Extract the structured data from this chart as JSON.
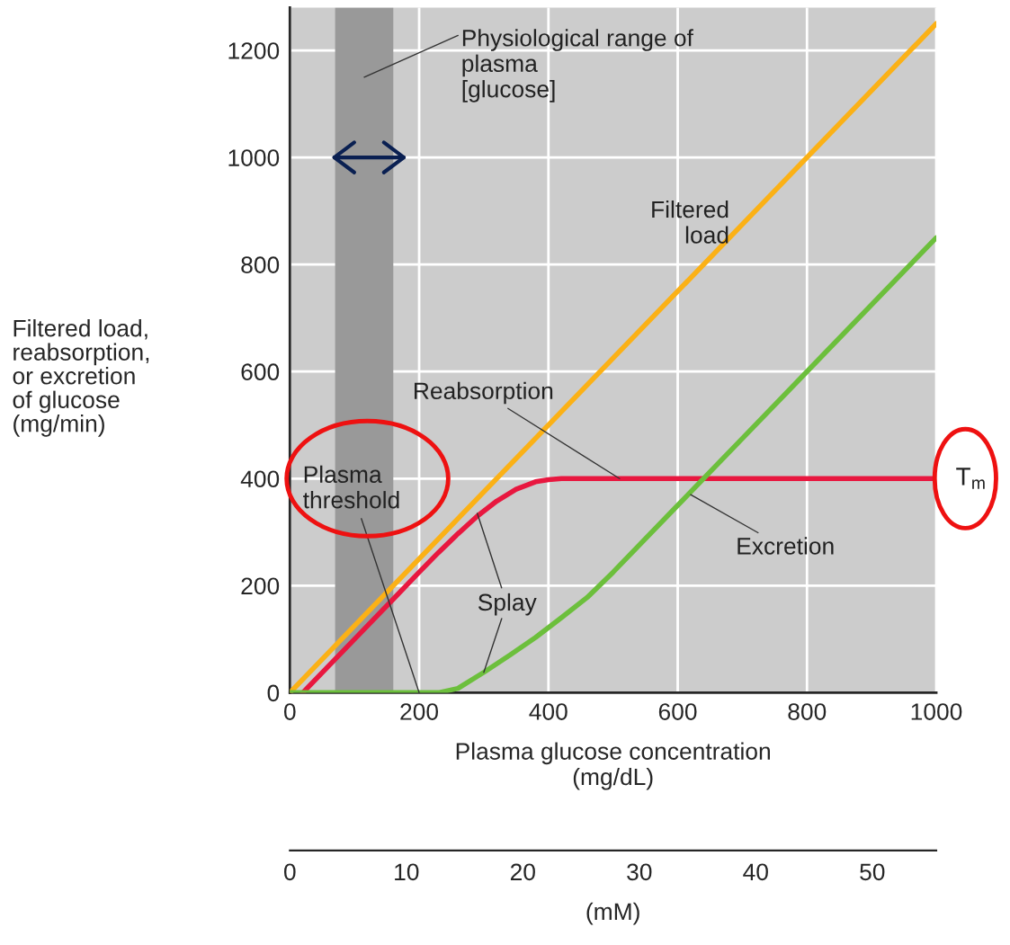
{
  "chart_data": {
    "type": "line",
    "xlabel": "Plasma glucose concentration\n(mg/dL)",
    "ylabel": "Filtered load,\nreabsorption,\nor excretion\nof glucose\n(mg/min)",
    "x2label": "(mM)",
    "xlim": [
      0,
      1000
    ],
    "xticks": [
      0,
      200,
      400,
      600,
      800,
      1000
    ],
    "ylim": [
      0,
      1280
    ],
    "yticks": [
      0,
      200,
      400,
      600,
      800,
      1000,
      1200
    ],
    "x2lim": [
      0,
      55.5
    ],
    "x2ticks": [
      0,
      10,
      20,
      30,
      40,
      50
    ],
    "grid": true,
    "marker": "none",
    "line_style": "solid",
    "series": [
      {
        "color": "#fbb116",
        "x": [
          0,
          1000
        ],
        "values": [
          0,
          1250
        ]
      },
      {
        "color": "#e8173f",
        "x": [
          20,
          100,
          160,
          200,
          230,
          260,
          290,
          320,
          350,
          380,
          400,
          420,
          1000
        ],
        "values": [
          0,
          100,
          175,
          225,
          262,
          297,
          330,
          358,
          380,
          394,
          398,
          400,
          400
        ]
      },
      {
        "color": "#6cbf3c",
        "x": [
          0,
          230,
          260,
          300,
          340,
          380,
          420,
          460,
          500,
          600,
          700,
          800,
          1000
        ],
        "values": [
          0,
          0,
          8,
          38,
          70,
          103,
          140,
          178,
          225,
          350,
          475,
          600,
          850
        ]
      }
    ],
    "bands": [
      {
        "axis": "x",
        "from": 70,
        "to": 160,
        "label": "Physiological range of\nplasma\n[glucose]",
        "color": "#999999"
      }
    ],
    "annotations": [
      {
        "text": "Filtered\nload",
        "x": 700,
        "y": 875
      },
      {
        "text": "Reabsorption",
        "x": 510,
        "y": 400
      },
      {
        "text": "Plasma\nthreshold",
        "x": 200,
        "y": 0
      },
      {
        "text": "Splay",
        "x": 290,
        "y": 335
      },
      {
        "text": "Excretion",
        "x": 620,
        "y": 370
      },
      {
        "text": "T$_{m}$",
        "x": 1000,
        "y": 400
      }
    ]
  }
}
